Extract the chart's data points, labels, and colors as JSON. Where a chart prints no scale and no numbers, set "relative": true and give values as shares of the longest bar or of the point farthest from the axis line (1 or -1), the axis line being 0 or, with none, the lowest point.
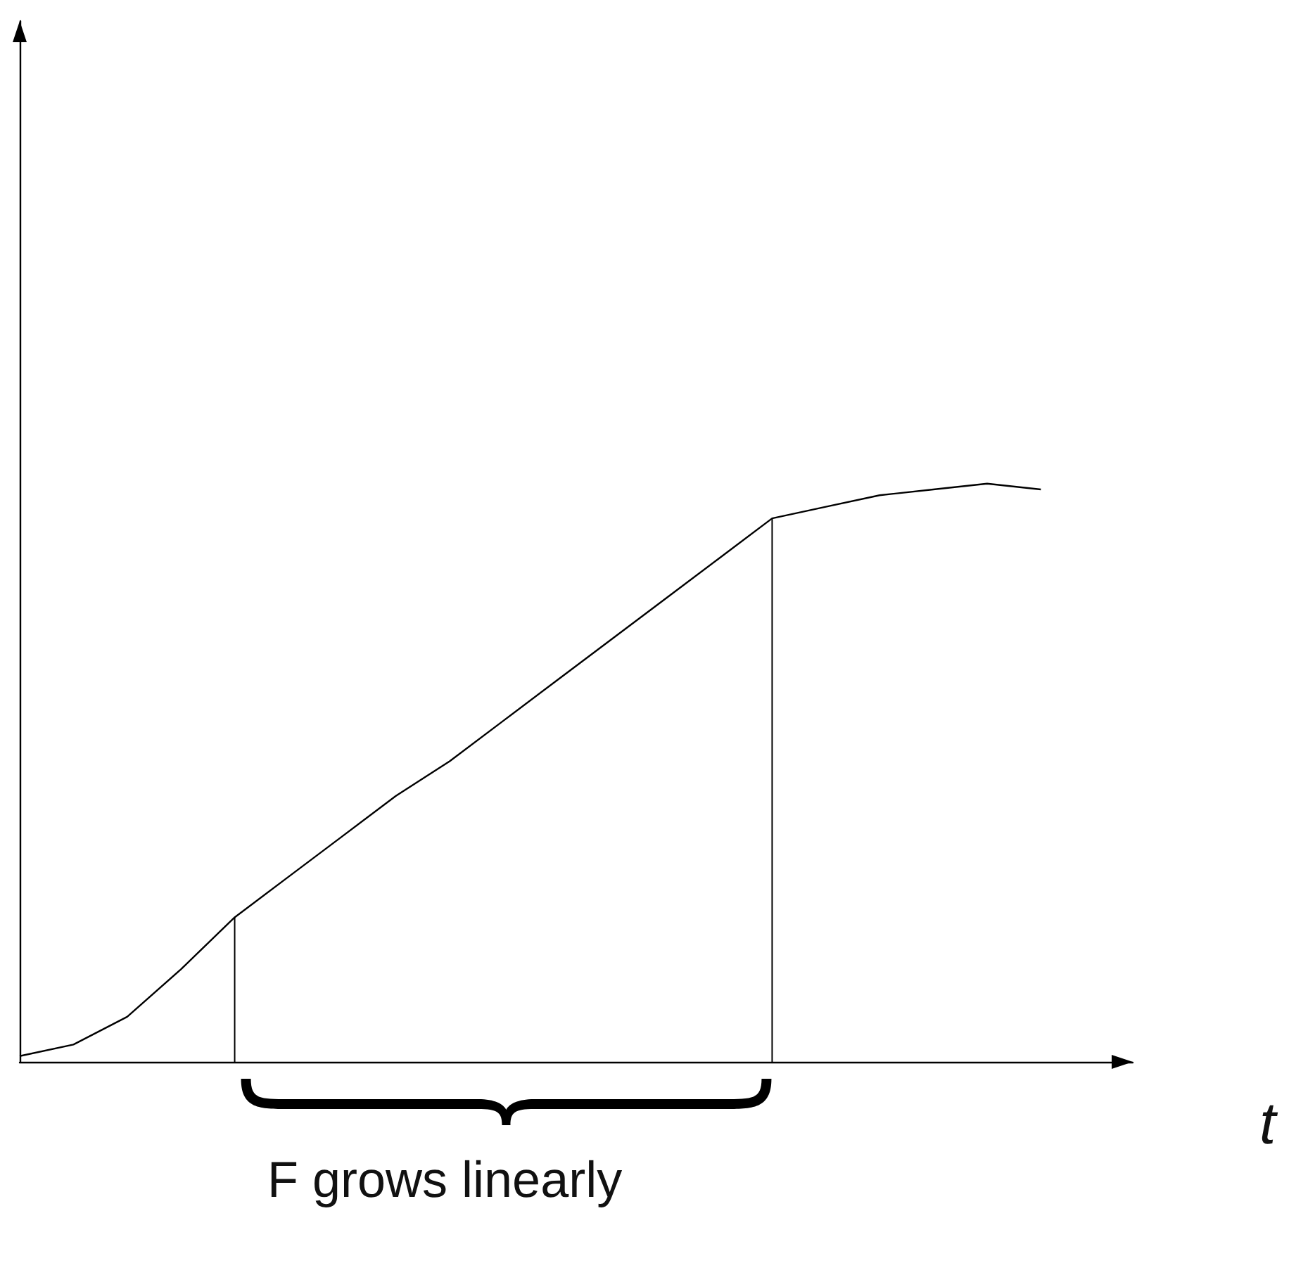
{
  "chart_data": {
    "type": "line",
    "relative": true,
    "xlabel": "t",
    "categories": [
      null,
      null,
      null,
      null,
      null,
      null,
      null,
      null,
      null,
      null,
      null,
      null,
      null,
      null,
      null,
      null,
      null,
      null,
      null,
      null
    ],
    "series": [
      {
        "color": "#000000",
        "values": [
          0.01,
          0.03,
          0.078,
          0.16,
          0.25,
          0.32,
          0.39,
          0.46,
          0.52,
          0.59,
          0.66,
          0.73,
          0.8,
          0.87,
          0.94,
          0.96,
          0.98,
          0.99,
          1.0,
          0.99
        ]
      }
    ],
    "annotations": [
      "F grows linearly"
    ],
    "marker": "none",
    "line_style": "solid",
    "grid": false
  }
}
